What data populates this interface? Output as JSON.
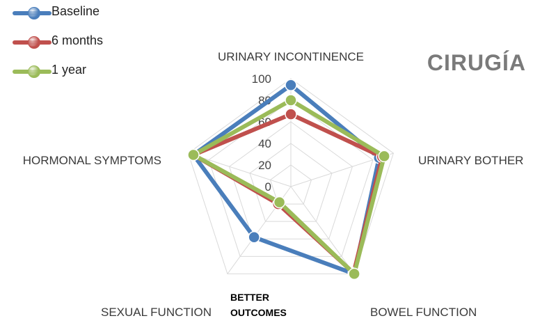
{
  "chart_data": {
    "type": "radar",
    "title": "CIRUGÍA",
    "axes": [
      "URINARY INCONTINENCE",
      "URINARY BOTHER",
      "BOWEL FUNCTION",
      "SEXUAL FUNCTION",
      "HORMONAL SYMPTOMS"
    ],
    "ticks": [
      "0",
      "20",
      "40",
      "60",
      "80",
      "100"
    ],
    "range": [
      0,
      100
    ],
    "annotation": [
      "BETTER",
      "OUTCOMES"
    ],
    "legend_position": "top-left",
    "series": [
      {
        "name": "Baseline",
        "color": "#4a7ebb",
        "values": [
          94,
          86,
          100,
          58,
          95
        ]
      },
      {
        "name": "6 months",
        "color": "#c0504d",
        "values": [
          67,
          89,
          99,
          20,
          95
        ]
      },
      {
        "name": "1 year",
        "color": "#9bbb59",
        "values": [
          80,
          91,
          100,
          18,
          95
        ]
      }
    ]
  }
}
